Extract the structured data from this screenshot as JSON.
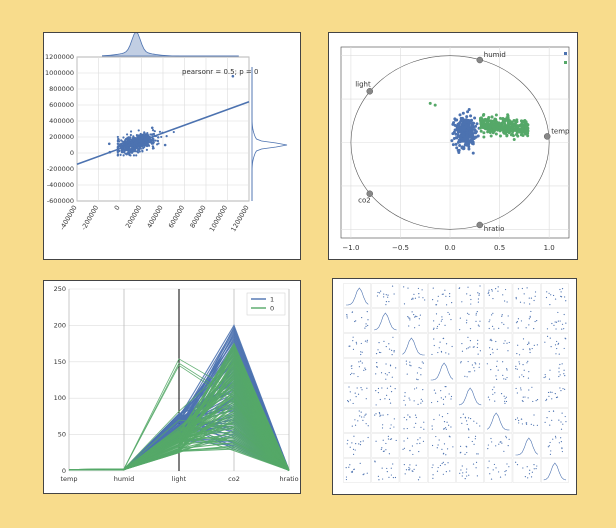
{
  "background": "#f8dc8c",
  "colors": {
    "blue": "#4c72b0",
    "green": "#55a868",
    "grid": "#dddddd",
    "axis": "#444444"
  },
  "chart_data": [
    {
      "type": "scatter",
      "annotation": "pearsonr = 0.5; p = 0",
      "xticks": [
        "-400000",
        "-200000",
        "0",
        "200000",
        "400000",
        "600000",
        "800000",
        "1000000",
        "1200000"
      ],
      "yticks": [
        "-600000",
        "-400000",
        "-200000",
        "0",
        "200000",
        "400000",
        "600000",
        "800000",
        "1000000",
        "1200000"
      ],
      "xlim": [
        -400000,
        1200000
      ],
      "ylim": [
        -600000,
        1200000
      ],
      "regression": {
        "x": [
          -400000,
          1200000
        ],
        "y": [
          -140000,
          640000
        ]
      },
      "outliers": [
        [
          1050000,
          960000
        ],
        [
          -100000,
          115000
        ],
        [
          -95000,
          10000
        ],
        [
          300000,
          230000
        ],
        [
          420000,
          100000
        ],
        [
          300000,
          315000
        ]
      ],
      "cluster": {
        "x_center": 150000,
        "y_center": 120000,
        "x_spread": 200000,
        "y_spread": 100000
      },
      "grid": true
    },
    {
      "type": "scatter",
      "subtype": "radviz",
      "anchors": [
        {
          "label": "humid",
          "x": 0.3,
          "y": 0.95
        },
        {
          "label": "light",
          "x": -0.81,
          "y": 0.59
        },
        {
          "label": "temp",
          "x": 0.98,
          "y": 0.07
        },
        {
          "label": "co2",
          "x": -0.81,
          "y": -0.59
        },
        {
          "label": "hratio",
          "x": 0.3,
          "y": -0.95
        }
      ],
      "xticks": [
        "−1.0",
        "−0.5",
        "0.0",
        "0.5",
        "1.0"
      ],
      "xlim": [
        -1.1,
        1.2
      ],
      "ylim": [
        -1.1,
        1.1
      ],
      "series": [
        {
          "name": "1",
          "color": "#4c72b0",
          "center": [
            0.15,
            0.12
          ],
          "spread": [
            0.12,
            0.18
          ]
        },
        {
          "name": "0",
          "color": "#55a868",
          "center": [
            0.45,
            0.2
          ],
          "spread": [
            0.3,
            0.1
          ]
        }
      ],
      "grid": true
    },
    {
      "type": "line",
      "subtype": "parallel_coordinates",
      "categories": [
        "temp",
        "humid",
        "light",
        "co2",
        "hratio"
      ],
      "yticks": [
        "0",
        "50",
        "100",
        "150",
        "200",
        "250"
      ],
      "ylim": [
        0,
        250
      ],
      "legend": [
        "1",
        "0"
      ],
      "legend_position": "top-right",
      "series": [
        {
          "name": "1",
          "color": "#4c72b0",
          "light_range": [
            40,
            80
          ],
          "co2_range": [
            30,
            200
          ]
        },
        {
          "name": "0",
          "color": "#55a868",
          "light_range": [
            25,
            155
          ],
          "co2_range": [
            25,
            175
          ]
        }
      ],
      "grid": true
    },
    {
      "type": "scatter",
      "subtype": "scatter_matrix",
      "size": 8,
      "grid": true
    }
  ]
}
